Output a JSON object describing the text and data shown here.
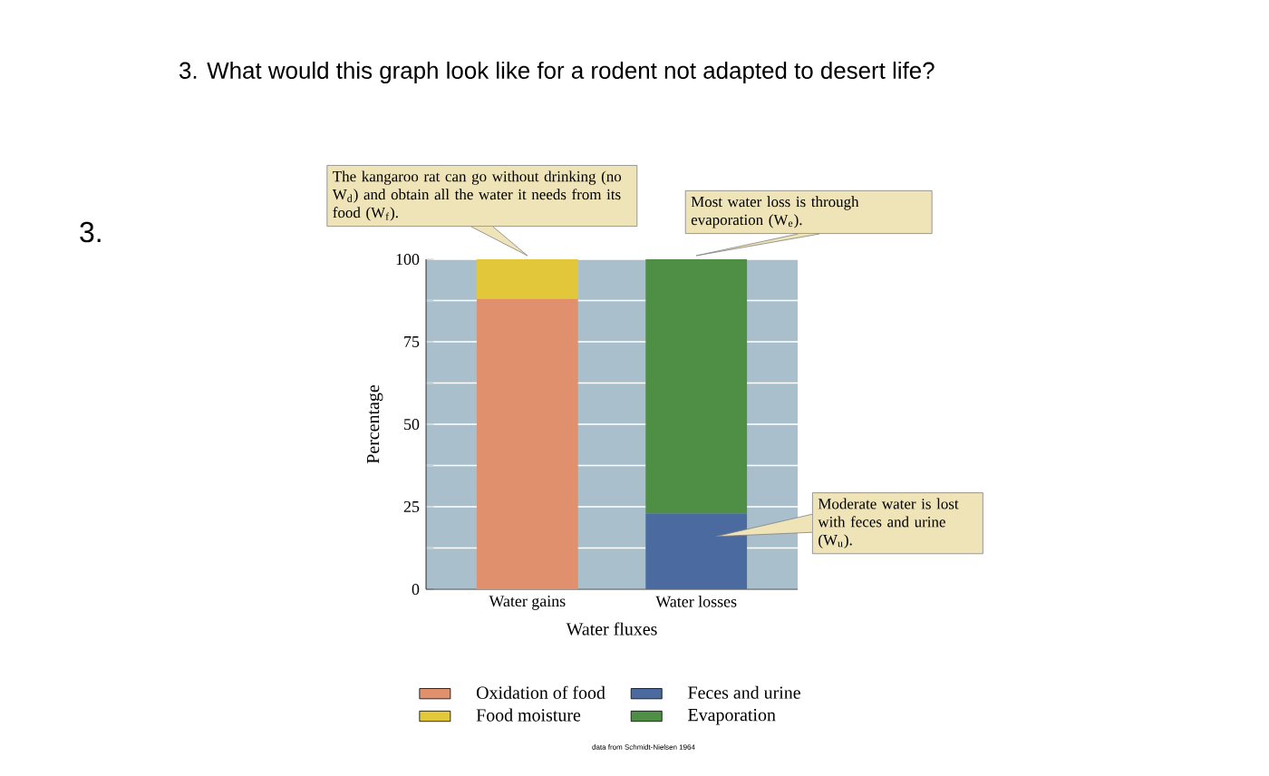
{
  "chart_data": {
    "type": "bar",
    "stacked": true,
    "title": "3. What would this graph look like for a rodent not adapted to desert life?",
    "xlabel": "Water fluxes",
    "ylabel": "Percentage",
    "categories": [
      "Water gains",
      "Water losses"
    ],
    "series": [
      {
        "name": "Oxidation of food",
        "color": "#e0906c",
        "values": [
          88,
          null
        ]
      },
      {
        "name": "Food moisture",
        "color": "#e2c73a",
        "values": [
          12,
          null
        ]
      },
      {
        "name": "Feces and urine",
        "color": "#4a6aa0",
        "values": [
          null,
          23
        ]
      },
      {
        "name": "Evaporation",
        "color": "#4f8f45",
        "values": [
          null,
          77
        ]
      }
    ],
    "ylim": [
      0,
      100
    ],
    "yticks": [
      0,
      {
        "value": 12.5,
        "label": null
      },
      25,
      {
        "value": 37.5,
        "label": null
      },
      50,
      {
        "value": 62.5,
        "label": null
      },
      75,
      {
        "value": 87.5,
        "label": null
      },
      100
    ],
    "grid": "y",
    "legend": "bottom",
    "annotations": [
      {
        "text": "The kangaroo rat can go without drinking (no W$_{d}$) and obtain all the water it needs from its food (W$_{f}$).",
        "x": "Water gains",
        "y": 100
      },
      {
        "text": "Most water loss is through evaporation (W$_{e}$).",
        "x": "Water losses",
        "y": 100
      },
      "3.",
      "data from Schmidt-Nielsen 1964",
      "Moderate water is lost with feces and urine (W$_{u}$)."
    ]
  }
}
